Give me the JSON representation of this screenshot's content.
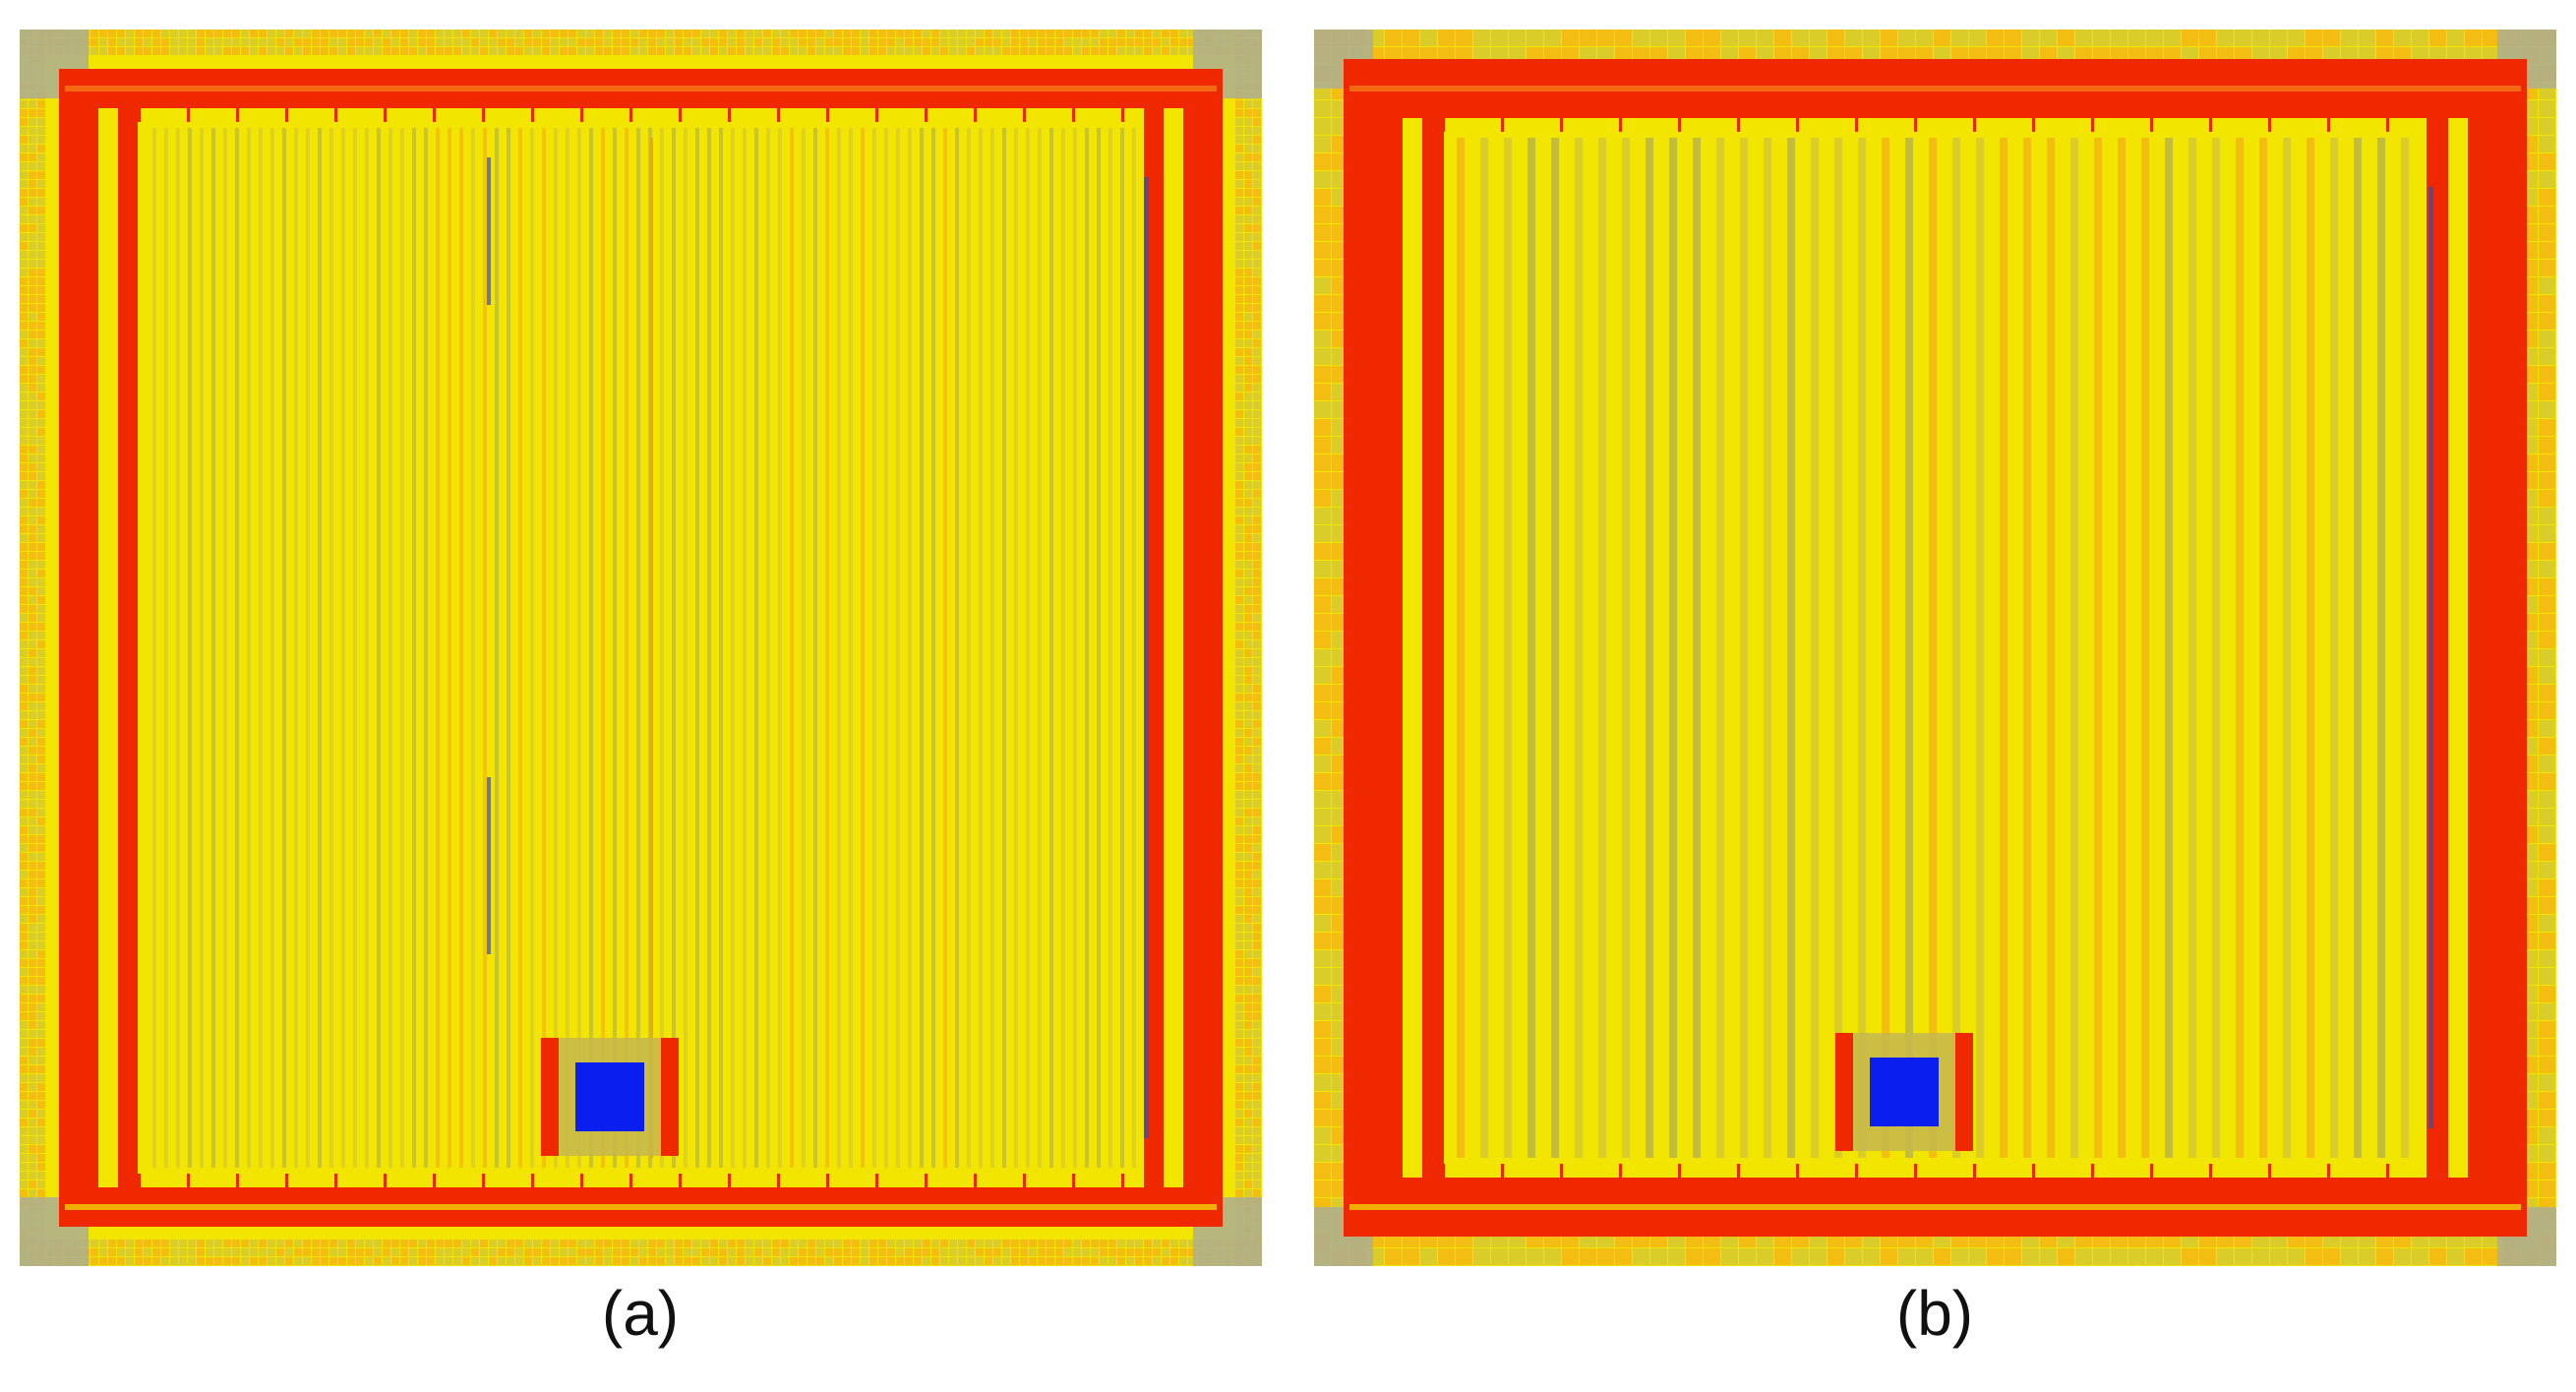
{
  "panels": [
    {
      "id": "a",
      "caption": "(a)",
      "resolution": "fine"
    },
    {
      "id": "b",
      "caption": "(b)",
      "resolution": "coarse"
    }
  ],
  "colors": {
    "background": "#ffffff",
    "field_yellow": "#f2e600",
    "field_olive": "#c8b84a",
    "stripe_gray": "#9a9a6a",
    "ring_red": "#f02800",
    "ring_orange": "#f56a10",
    "pad_orange": "#f59a20",
    "hotspot_blue": "#0a1ef0",
    "stripe_blue": "#3a50b0",
    "corner_gray": "#b0b08a"
  }
}
